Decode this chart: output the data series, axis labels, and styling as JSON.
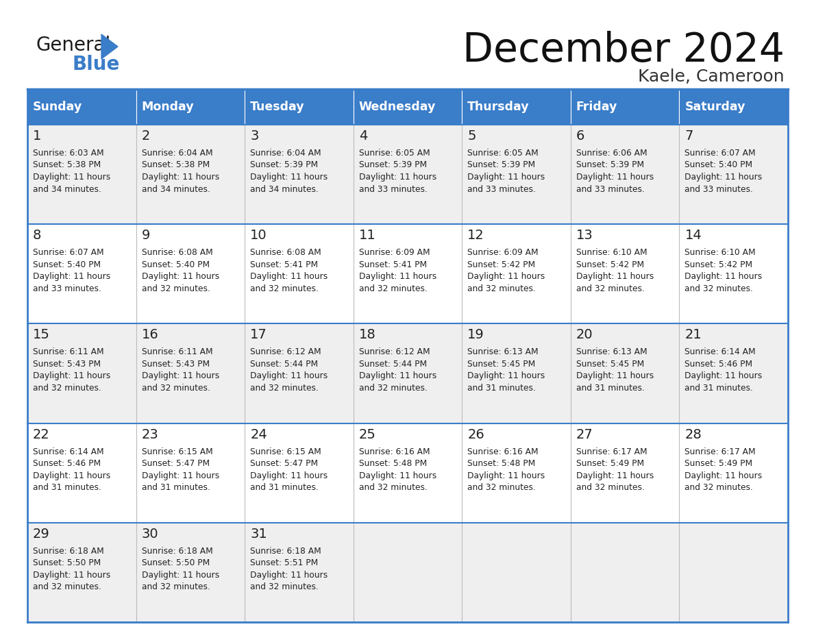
{
  "title": "December 2024",
  "subtitle": "Kaele, Cameroon",
  "header_bg": "#3A7DC9",
  "header_text_color": "#FFFFFF",
  "row_bg_odd": "#EFEFEF",
  "row_bg_even": "#FFFFFF",
  "border_color": "#3A7DC9",
  "text_color": "#222222",
  "day_names": [
    "Sunday",
    "Monday",
    "Tuesday",
    "Wednesday",
    "Thursday",
    "Friday",
    "Saturday"
  ],
  "days": [
    {
      "day": 1,
      "col": 0,
      "row": 0,
      "sunrise": "6:03 AM",
      "sunset": "5:38 PM",
      "dl1": "Daylight: 11 hours",
      "dl2": "and 34 minutes."
    },
    {
      "day": 2,
      "col": 1,
      "row": 0,
      "sunrise": "6:04 AM",
      "sunset": "5:38 PM",
      "dl1": "Daylight: 11 hours",
      "dl2": "and 34 minutes."
    },
    {
      "day": 3,
      "col": 2,
      "row": 0,
      "sunrise": "6:04 AM",
      "sunset": "5:39 PM",
      "dl1": "Daylight: 11 hours",
      "dl2": "and 34 minutes."
    },
    {
      "day": 4,
      "col": 3,
      "row": 0,
      "sunrise": "6:05 AM",
      "sunset": "5:39 PM",
      "dl1": "Daylight: 11 hours",
      "dl2": "and 33 minutes."
    },
    {
      "day": 5,
      "col": 4,
      "row": 0,
      "sunrise": "6:05 AM",
      "sunset": "5:39 PM",
      "dl1": "Daylight: 11 hours",
      "dl2": "and 33 minutes."
    },
    {
      "day": 6,
      "col": 5,
      "row": 0,
      "sunrise": "6:06 AM",
      "sunset": "5:39 PM",
      "dl1": "Daylight: 11 hours",
      "dl2": "and 33 minutes."
    },
    {
      "day": 7,
      "col": 6,
      "row": 0,
      "sunrise": "6:07 AM",
      "sunset": "5:40 PM",
      "dl1": "Daylight: 11 hours",
      "dl2": "and 33 minutes."
    },
    {
      "day": 8,
      "col": 0,
      "row": 1,
      "sunrise": "6:07 AM",
      "sunset": "5:40 PM",
      "dl1": "Daylight: 11 hours",
      "dl2": "and 33 minutes."
    },
    {
      "day": 9,
      "col": 1,
      "row": 1,
      "sunrise": "6:08 AM",
      "sunset": "5:40 PM",
      "dl1": "Daylight: 11 hours",
      "dl2": "and 32 minutes."
    },
    {
      "day": 10,
      "col": 2,
      "row": 1,
      "sunrise": "6:08 AM",
      "sunset": "5:41 PM",
      "dl1": "Daylight: 11 hours",
      "dl2": "and 32 minutes."
    },
    {
      "day": 11,
      "col": 3,
      "row": 1,
      "sunrise": "6:09 AM",
      "sunset": "5:41 PM",
      "dl1": "Daylight: 11 hours",
      "dl2": "and 32 minutes."
    },
    {
      "day": 12,
      "col": 4,
      "row": 1,
      "sunrise": "6:09 AM",
      "sunset": "5:42 PM",
      "dl1": "Daylight: 11 hours",
      "dl2": "and 32 minutes."
    },
    {
      "day": 13,
      "col": 5,
      "row": 1,
      "sunrise": "6:10 AM",
      "sunset": "5:42 PM",
      "dl1": "Daylight: 11 hours",
      "dl2": "and 32 minutes."
    },
    {
      "day": 14,
      "col": 6,
      "row": 1,
      "sunrise": "6:10 AM",
      "sunset": "5:42 PM",
      "dl1": "Daylight: 11 hours",
      "dl2": "and 32 minutes."
    },
    {
      "day": 15,
      "col": 0,
      "row": 2,
      "sunrise": "6:11 AM",
      "sunset": "5:43 PM",
      "dl1": "Daylight: 11 hours",
      "dl2": "and 32 minutes."
    },
    {
      "day": 16,
      "col": 1,
      "row": 2,
      "sunrise": "6:11 AM",
      "sunset": "5:43 PM",
      "dl1": "Daylight: 11 hours",
      "dl2": "and 32 minutes."
    },
    {
      "day": 17,
      "col": 2,
      "row": 2,
      "sunrise": "6:12 AM",
      "sunset": "5:44 PM",
      "dl1": "Daylight: 11 hours",
      "dl2": "and 32 minutes."
    },
    {
      "day": 18,
      "col": 3,
      "row": 2,
      "sunrise": "6:12 AM",
      "sunset": "5:44 PM",
      "dl1": "Daylight: 11 hours",
      "dl2": "and 32 minutes."
    },
    {
      "day": 19,
      "col": 4,
      "row": 2,
      "sunrise": "6:13 AM",
      "sunset": "5:45 PM",
      "dl1": "Daylight: 11 hours",
      "dl2": "and 31 minutes."
    },
    {
      "day": 20,
      "col": 5,
      "row": 2,
      "sunrise": "6:13 AM",
      "sunset": "5:45 PM",
      "dl1": "Daylight: 11 hours",
      "dl2": "and 31 minutes."
    },
    {
      "day": 21,
      "col": 6,
      "row": 2,
      "sunrise": "6:14 AM",
      "sunset": "5:46 PM",
      "dl1": "Daylight: 11 hours",
      "dl2": "and 31 minutes."
    },
    {
      "day": 22,
      "col": 0,
      "row": 3,
      "sunrise": "6:14 AM",
      "sunset": "5:46 PM",
      "dl1": "Daylight: 11 hours",
      "dl2": "and 31 minutes."
    },
    {
      "day": 23,
      "col": 1,
      "row": 3,
      "sunrise": "6:15 AM",
      "sunset": "5:47 PM",
      "dl1": "Daylight: 11 hours",
      "dl2": "and 31 minutes."
    },
    {
      "day": 24,
      "col": 2,
      "row": 3,
      "sunrise": "6:15 AM",
      "sunset": "5:47 PM",
      "dl1": "Daylight: 11 hours",
      "dl2": "and 31 minutes."
    },
    {
      "day": 25,
      "col": 3,
      "row": 3,
      "sunrise": "6:16 AM",
      "sunset": "5:48 PM",
      "dl1": "Daylight: 11 hours",
      "dl2": "and 32 minutes."
    },
    {
      "day": 26,
      "col": 4,
      "row": 3,
      "sunrise": "6:16 AM",
      "sunset": "5:48 PM",
      "dl1": "Daylight: 11 hours",
      "dl2": "and 32 minutes."
    },
    {
      "day": 27,
      "col": 5,
      "row": 3,
      "sunrise": "6:17 AM",
      "sunset": "5:49 PM",
      "dl1": "Daylight: 11 hours",
      "dl2": "and 32 minutes."
    },
    {
      "day": 28,
      "col": 6,
      "row": 3,
      "sunrise": "6:17 AM",
      "sunset": "5:49 PM",
      "dl1": "Daylight: 11 hours",
      "dl2": "and 32 minutes."
    },
    {
      "day": 29,
      "col": 0,
      "row": 4,
      "sunrise": "6:18 AM",
      "sunset": "5:50 PM",
      "dl1": "Daylight: 11 hours",
      "dl2": "and 32 minutes."
    },
    {
      "day": 30,
      "col": 1,
      "row": 4,
      "sunrise": "6:18 AM",
      "sunset": "5:50 PM",
      "dl1": "Daylight: 11 hours",
      "dl2": "and 32 minutes."
    },
    {
      "day": 31,
      "col": 2,
      "row": 4,
      "sunrise": "6:18 AM",
      "sunset": "5:51 PM",
      "dl1": "Daylight: 11 hours",
      "dl2": "and 32 minutes."
    }
  ]
}
